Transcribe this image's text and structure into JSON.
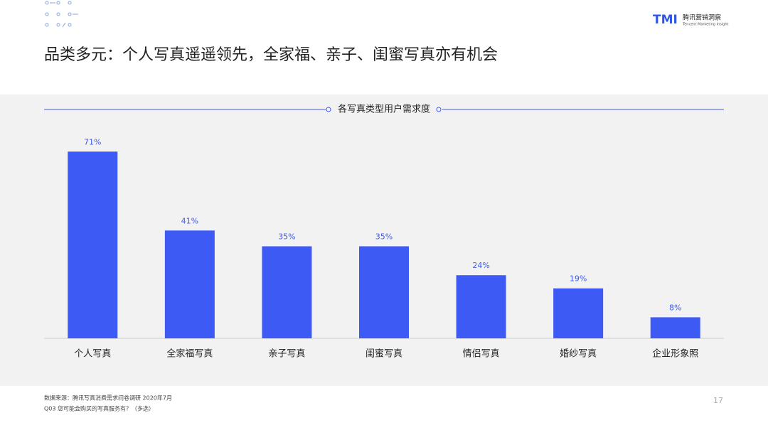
{
  "header": {
    "title": "品类多元：个人写真遥遥领先，全家福、亲子、闺蜜写真亦有机会",
    "logo_mark": "TMI",
    "logo_name": "腾讯营销洞察",
    "logo_subtitle": "Tencent Marketing Insight"
  },
  "chart_data": {
    "type": "bar",
    "title": "各写真类型用户需求度",
    "categories": [
      "个人写真",
      "全家福写真",
      "亲子写真",
      "闺蜜写真",
      "情侣写真",
      "婚纱写真",
      "企业形象照"
    ],
    "values": [
      71,
      41,
      35,
      35,
      24,
      19,
      8
    ],
    "value_labels": [
      "71%",
      "41%",
      "35%",
      "35%",
      "24%",
      "19%",
      "8%"
    ],
    "color": "#3d5af5"
  },
  "footer": {
    "source": "数据来源：腾讯写真消费需求问卷调研 2020年7月",
    "question": "Q03 您可能会购买的写真服务有？（多选）",
    "page_number": "17"
  }
}
